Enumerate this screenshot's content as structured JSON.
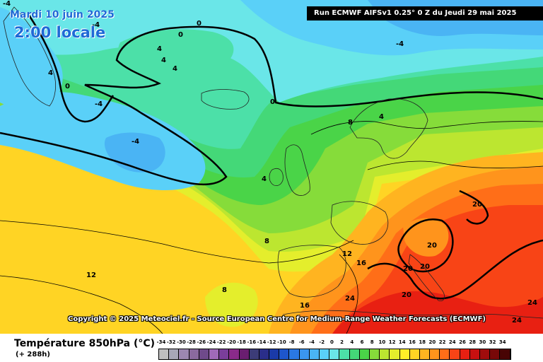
{
  "header": {
    "date": "Mardi 10 juin 2025",
    "local_time": "2:00 locale",
    "run_info": "Run ECMWF AIFSv1 0.25° 0 Z du Jeudi 29 mai 2025"
  },
  "copyright": "Copyright © 2025 Meteociel.fr - Source European Centre for Medium-Range Weather Forecasts (ECMWF)",
  "footer": {
    "variable": "Température 850hPa (°C)",
    "lead_time": "(+ 288h)"
  },
  "legend": {
    "values": [
      "-34",
      "-32",
      "-30",
      "-28",
      "-26",
      "-24",
      "-22",
      "-20",
      "-18",
      "-16",
      "-14",
      "-12",
      "-10",
      "-8",
      "-6",
      "-4",
      "-2",
      "0",
      "2",
      "4",
      "6",
      "8",
      "10",
      "12",
      "14",
      "16",
      "18",
      "20",
      "22",
      "24",
      "26",
      "28",
      "30",
      "32",
      "34"
    ],
    "colors": [
      "#bfbfbf",
      "#a7a7b7",
      "#9c87b0",
      "#8a6a9e",
      "#6f4a8a",
      "#a06ab8",
      "#7a3e9a",
      "#8a2a8a",
      "#6a1e70",
      "#3c3c78",
      "#2a2e8a",
      "#1a3aa8",
      "#1e56cc",
      "#2a78e4",
      "#3a96f0",
      "#4ab4f4",
      "#5ad0f8",
      "#6ae6e8",
      "#4ce0a8",
      "#44d878",
      "#4ad448",
      "#86dc3a",
      "#bce630",
      "#e4ee2c",
      "#fff028",
      "#ffd424",
      "#ffb420",
      "#ff941c",
      "#ff6e18",
      "#f84416",
      "#e82012",
      "#c81010",
      "#a00c0c",
      "#780808",
      "#480404"
    ]
  },
  "map": {
    "isotherm_labels": [
      {
        "text": "-4"
      },
      {
        "text": "0"
      },
      {
        "text": "0"
      },
      {
        "text": "4"
      },
      {
        "text": "4"
      },
      {
        "text": "4"
      },
      {
        "text": "4"
      },
      {
        "text": "0"
      },
      {
        "text": "-4"
      },
      {
        "text": "-4"
      },
      {
        "text": "0"
      },
      {
        "text": "-4"
      },
      {
        "text": "4"
      },
      {
        "text": "8"
      },
      {
        "text": "4"
      },
      {
        "text": "8"
      },
      {
        "text": "12"
      },
      {
        "text": "16"
      },
      {
        "text": "12"
      },
      {
        "text": "8"
      },
      {
        "text": "16"
      },
      {
        "text": "24"
      },
      {
        "text": "20"
      },
      {
        "text": "20"
      },
      {
        "text": "20"
      },
      {
        "text": "20"
      },
      {
        "text": "20"
      },
      {
        "text": "24"
      },
      {
        "text": "24"
      },
      {
        "text": "-4"
      }
    ]
  }
}
